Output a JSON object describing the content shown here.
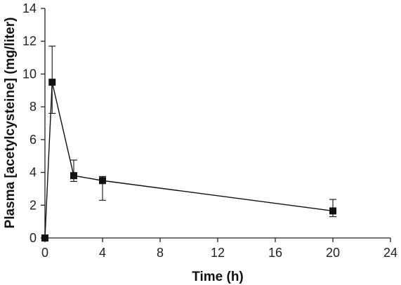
{
  "chart_data": {
    "type": "line",
    "title": "",
    "xlabel": "Time (h)",
    "ylabel": "Plasma [acetylcysteine] (mg/liter)",
    "xlim": [
      0,
      24
    ],
    "ylim": [
      0,
      14
    ],
    "xticks": [
      0,
      4,
      8,
      12,
      16,
      20,
      24
    ],
    "yticks": [
      0,
      2,
      4,
      6,
      8,
      10,
      12,
      14
    ],
    "grid": false,
    "legend": "none",
    "colors": {
      "line": "#111111",
      "marker": "#111111",
      "axis": "#222222"
    },
    "series": [
      {
        "x": [
          0,
          0.5,
          2,
          4,
          20
        ],
        "y": [
          0,
          9.5,
          3.8,
          3.5,
          1.65
        ],
        "error_upper": [
          0,
          11.7,
          4.75,
          3.75,
          2.35
        ],
        "error_lower": [
          0,
          7.6,
          3.45,
          2.3,
          1.3
        ]
      }
    ]
  }
}
